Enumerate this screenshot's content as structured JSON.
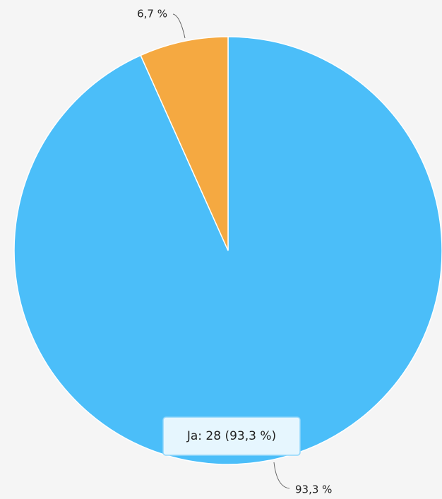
{
  "chart_data": {
    "type": "pie",
    "categories": [
      "Ja",
      null
    ],
    "values": [
      93.3,
      6.7
    ],
    "value_labels": [
      "93,3 %",
      "6,7 %"
    ],
    "colors": [
      "#4bbef9",
      "#f5a941"
    ],
    "tooltip": "Ja: 28 (93,3 %)"
  }
}
